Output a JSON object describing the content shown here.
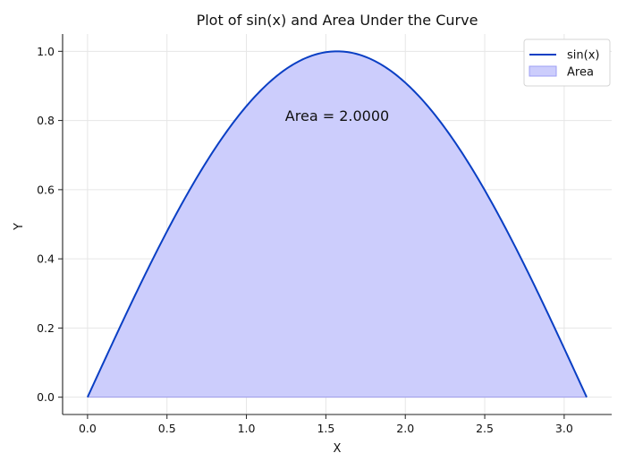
{
  "chart_data": {
    "type": "area",
    "title": "Plot of sin(x) and Area Under the Curve",
    "xlabel": "X",
    "ylabel": "Y",
    "xlim": [
      -0.157,
      3.299
    ],
    "ylim": [
      -0.05,
      1.05
    ],
    "xticks": [
      "0.0",
      "0.5",
      "1.0",
      "1.5",
      "2.0",
      "2.5",
      "3.0"
    ],
    "yticks": [
      "0.0",
      "0.2",
      "0.4",
      "0.6",
      "0.8",
      "1.0"
    ],
    "grid": true,
    "legend_position": "top-right",
    "series": [
      {
        "name": "sin(x)",
        "kind": "line",
        "color": "#0a3fc4",
        "x": [
          0.0,
          0.2618,
          0.5236,
          0.7854,
          1.0472,
          1.309,
          1.5708,
          1.8326,
          2.0944,
          2.3562,
          2.618,
          2.8798,
          3.1416
        ],
        "y": [
          0.0,
          0.2588,
          0.5,
          0.7071,
          0.866,
          0.9659,
          1.0,
          0.9659,
          0.866,
          0.7071,
          0.5,
          0.2588,
          0.0
        ]
      },
      {
        "name": "Area",
        "kind": "fill",
        "color": "#cccdfc",
        "x": [
          0.0,
          0.2618,
          0.5236,
          0.7854,
          1.0472,
          1.309,
          1.5708,
          1.8326,
          2.0944,
          2.3562,
          2.618,
          2.8798,
          3.1416
        ],
        "y": [
          0.0,
          0.2588,
          0.5,
          0.7071,
          0.866,
          0.9659,
          1.0,
          0.9659,
          0.866,
          0.7071,
          0.5,
          0.2588,
          0.0
        ]
      }
    ],
    "annotations": [
      {
        "text": "Area = 2.0000",
        "x": 1.57,
        "y": 0.8
      }
    ]
  }
}
